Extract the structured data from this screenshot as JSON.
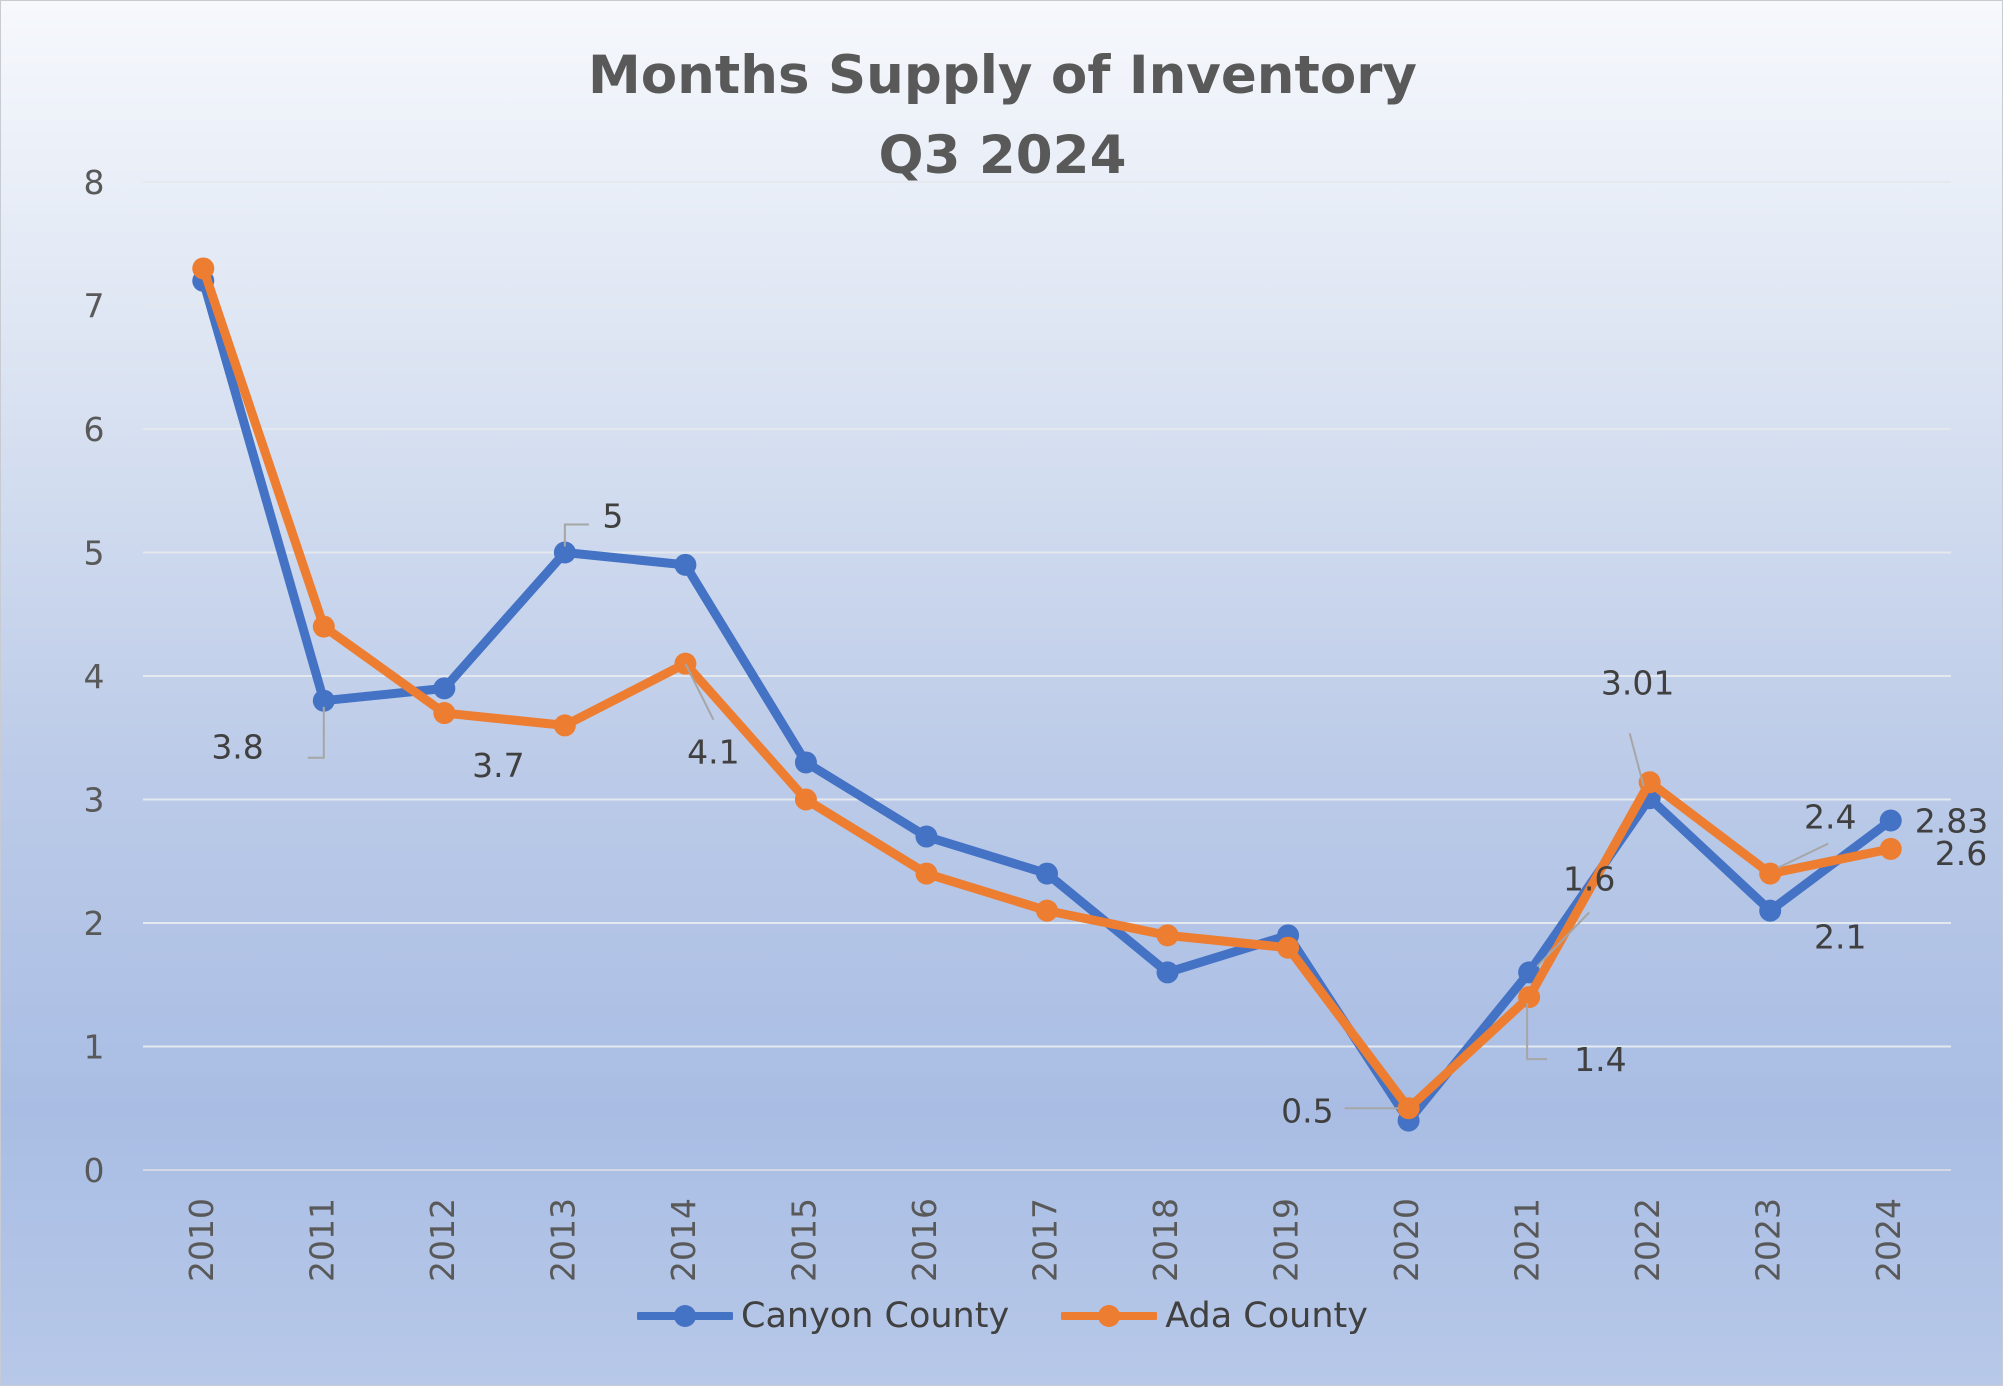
{
  "chart_data": {
    "type": "line",
    "title": "Months Supply of Inventory",
    "subtitle": "Q3 2024",
    "categories": [
      "2010",
      "2011",
      "2012",
      "2013",
      "2014",
      "2015",
      "2016",
      "2017",
      "2018",
      "2019",
      "2020",
      "2021",
      "2022",
      "2023",
      "2024"
    ],
    "ylim": [
      0,
      8
    ],
    "yticks": [
      0,
      1,
      2,
      3,
      4,
      5,
      6,
      7,
      8
    ],
    "grid": true,
    "legend_position": "bottom",
    "series": [
      {
        "name": "Canyon County",
        "color": "#4472C4",
        "values": [
          7.2,
          3.8,
          3.9,
          5.0,
          4.9,
          3.3,
          2.7,
          2.4,
          1.6,
          1.9,
          0.4,
          1.6,
          3.01,
          2.1,
          2.83
        ],
        "data_labels": [
          {
            "year": "2011",
            "text": "3.8"
          },
          {
            "year": "2013",
            "text": "5"
          },
          {
            "year": "2021",
            "text": "1.6"
          },
          {
            "year": "2022",
            "text": "3.01"
          },
          {
            "year": "2023",
            "text": "2.1"
          },
          {
            "year": "2024",
            "text": "2.83"
          }
        ]
      },
      {
        "name": "Ada County",
        "color": "#ED7D31",
        "values": [
          7.3,
          4.4,
          3.7,
          3.6,
          4.1,
          3.0,
          2.4,
          2.1,
          1.9,
          1.8,
          0.5,
          1.4,
          3.14,
          2.4,
          2.6
        ],
        "data_labels": [
          {
            "year": "2012",
            "text": "3.7"
          },
          {
            "year": "2014",
            "text": "4.1"
          },
          {
            "year": "2020",
            "text": "0.5"
          },
          {
            "year": "2021",
            "text": "1.4"
          },
          {
            "year": "2023",
            "text": "2.4"
          },
          {
            "year": "2024",
            "text": "2.6"
          }
        ]
      }
    ]
  }
}
